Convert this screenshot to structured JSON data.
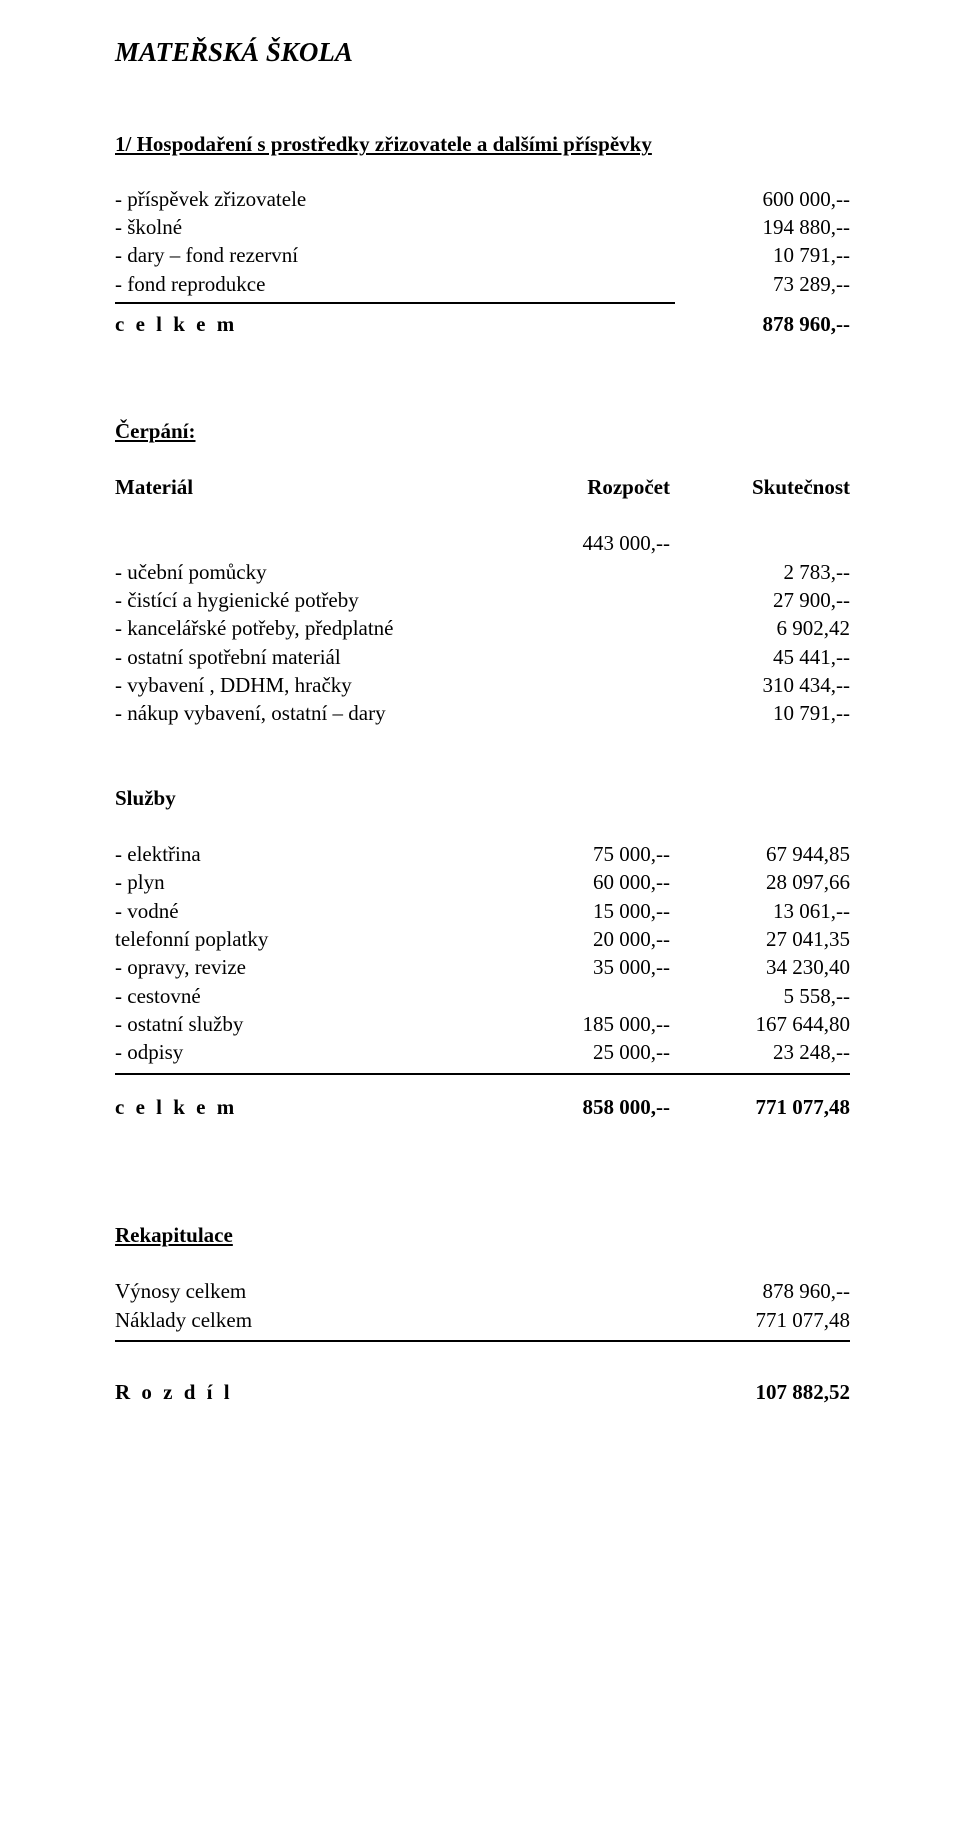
{
  "title": "MATEŘSKÁ ŠKOLA",
  "section1": {
    "heading": "1/  Hospodaření s prostředky zřizovatele a dalšími příspěvky",
    "rows": [
      {
        "label": "- příspěvek zřizovatele",
        "value": "600 000,--"
      },
      {
        "label": "- školné",
        "value": "194 880,--"
      },
      {
        "label": "- dary – fond rezervní",
        "value": "10 791,--"
      },
      {
        "label": "- fond reprodukce",
        "value": "73 289,--"
      }
    ],
    "total": {
      "label": "c e l k e m",
      "value": "878 960,--"
    }
  },
  "cerpani": {
    "heading": "Čerpání:",
    "material": {
      "colhead": {
        "c1": "Materiál",
        "c2": "Rozpočet",
        "c3": "Skutečnost"
      },
      "budget_only": "443 000,--",
      "rows": [
        {
          "label": "- učební pomůcky",
          "value": "2 783,--"
        },
        {
          "label": "- čistící a hygienické potřeby",
          "value": "27 900,--"
        },
        {
          "label": "- kancelářské potřeby, předplatné",
          "value": "6 902,42"
        },
        {
          "label": "- ostatní spotřební materiál",
          "value": "45 441,--"
        },
        {
          "label": "- vybavení , DDHM, hračky",
          "value": "310 434,--"
        },
        {
          "label": "- nákup vybavení, ostatní – dary",
          "value": "10 791,--"
        }
      ]
    },
    "sluzby": {
      "heading": "Služby",
      "rows": [
        {
          "label": "- elektřina",
          "mid": "75 000,--",
          "value": "67 944,85"
        },
        {
          "label": "- plyn",
          "mid": "60 000,--",
          "value": "28 097,66"
        },
        {
          "label": "- vodné",
          "mid": "15 000,--",
          "value": "13 061,--"
        },
        {
          "label": "  telefonní poplatky",
          "mid": "20 000,--",
          "value": "27 041,35"
        },
        {
          "label": "- opravy, revize",
          "mid": "35 000,--",
          "value": "34 230,40"
        },
        {
          "label": "- cestovné",
          "mid": "",
          "value": "5 558,--"
        },
        {
          "label": "- ostatní služby",
          "mid": "185 000,--",
          "value": "167 644,80"
        },
        {
          "label": "- odpisy",
          "mid": "25 000,--",
          "value": "23 248,--"
        }
      ],
      "total": {
        "label": "c e l k e m",
        "mid": "858 000,--",
        "value": "771 077,48"
      }
    }
  },
  "rekap": {
    "heading": "Rekapitulace",
    "rows": [
      {
        "label": "Výnosy celkem",
        "value": "878 960,--"
      },
      {
        "label": "Náklady celkem",
        "value": "771 077,48"
      }
    ],
    "result": {
      "label": "R o z d í l",
      "value": "107 882,52"
    }
  }
}
